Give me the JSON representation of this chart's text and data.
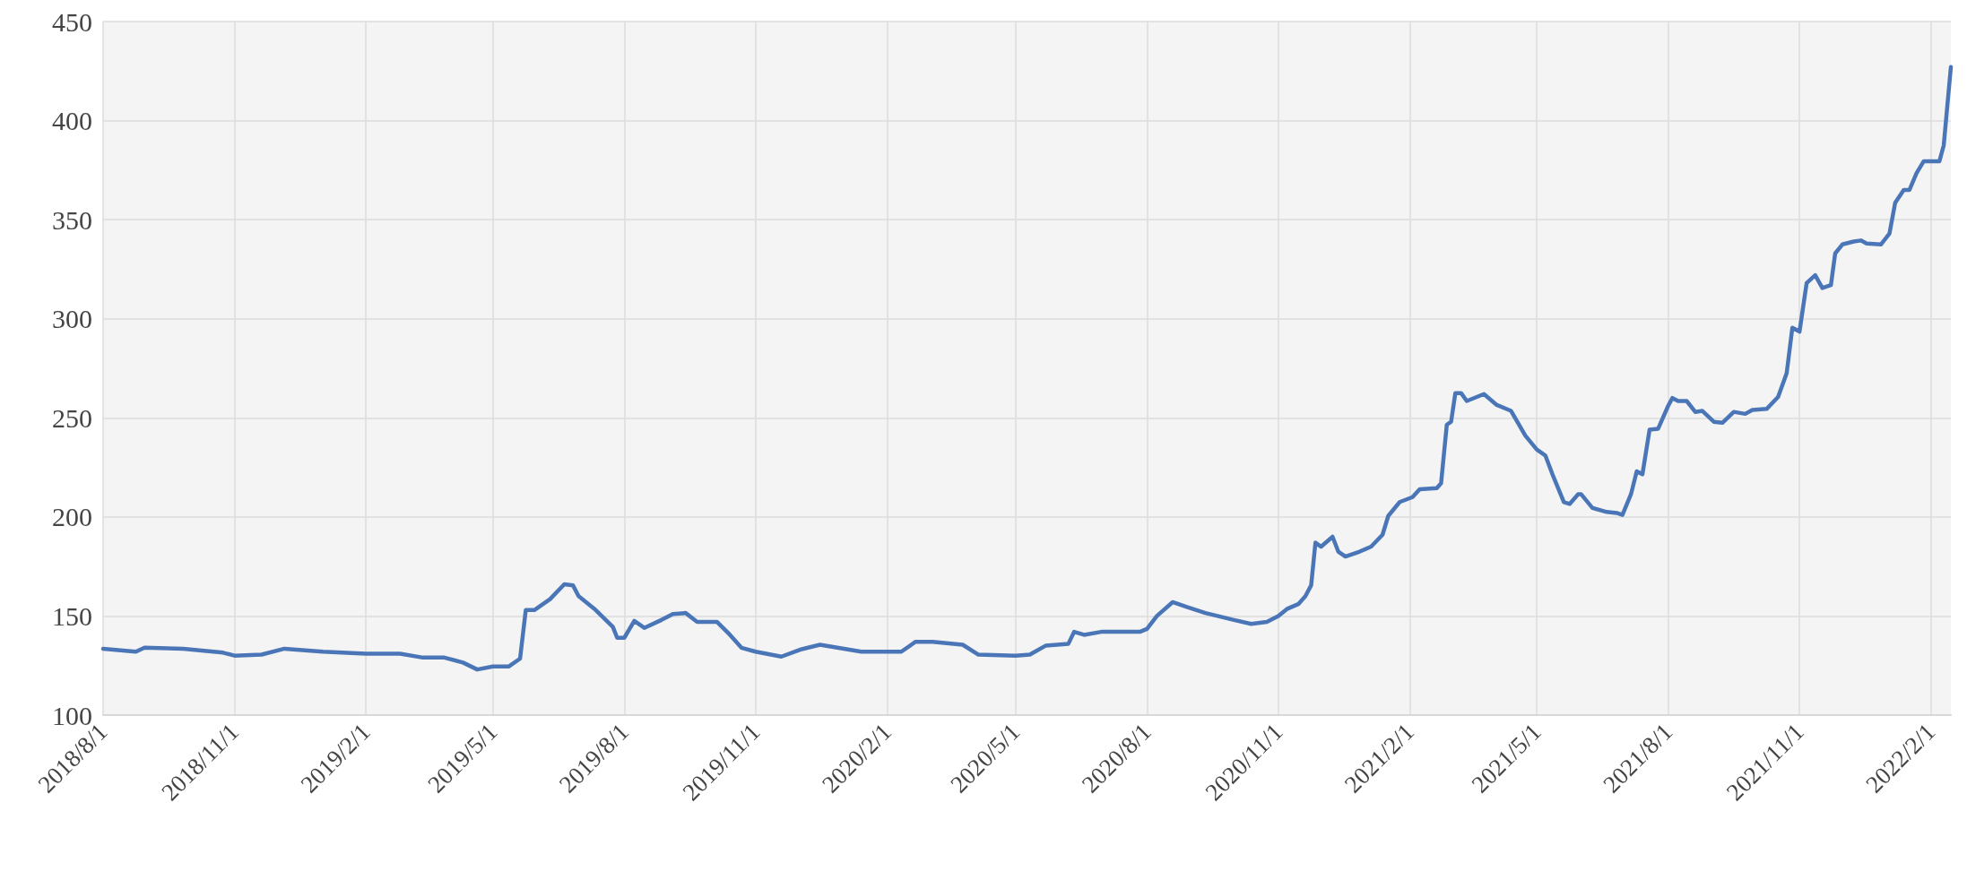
{
  "chart_data": {
    "type": "line",
    "color": "#4a76b8",
    "grid": true,
    "marker": "none",
    "line_style": "solid",
    "xlim": [
      "2018-08-01",
      "2022-02-15"
    ],
    "xticks": [
      {
        "value": "2018-08-01",
        "label": "2018/8/1"
      },
      {
        "value": "2018-11-01",
        "label": "2018/11/1"
      },
      {
        "value": "2019-02-01",
        "label": "2019/2/1"
      },
      {
        "value": "2019-05-01",
        "label": "2019/5/1"
      },
      {
        "value": "2019-08-01",
        "label": "2019/8/1"
      },
      {
        "value": "2019-11-01",
        "label": "2019/11/1"
      },
      {
        "value": "2020-02-01",
        "label": "2020/2/1"
      },
      {
        "value": "2020-05-01",
        "label": "2020/5/1"
      },
      {
        "value": "2020-08-01",
        "label": "2020/8/1"
      },
      {
        "value": "2020-11-01",
        "label": "2020/11/1"
      },
      {
        "value": "2021-02-01",
        "label": "2021/2/1"
      },
      {
        "value": "2021-05-01",
        "label": "2021/5/1"
      },
      {
        "value": "2021-08-01",
        "label": "2021/8/1"
      },
      {
        "value": "2021-11-01",
        "label": "2021/11/1"
      },
      {
        "value": "2022-02-01",
        "label": "2022/2/1"
      }
    ],
    "ylim": [
      100,
      450
    ],
    "yticks": [
      100,
      150,
      200,
      250,
      300,
      350,
      400,
      450
    ],
    "x": [
      "2018-08-01",
      "2018-08-24",
      "2018-08-30",
      "2018-09-26",
      "2018-10-24",
      "2018-11-01",
      "2018-11-20",
      "2018-12-06",
      "2019-01-02",
      "2019-02-01",
      "2019-02-25",
      "2019-03-13",
      "2019-03-28",
      "2019-04-10",
      "2019-04-20",
      "2019-05-01",
      "2019-05-12",
      "2019-05-20",
      "2019-05-24",
      "2019-05-30",
      "2019-06-10",
      "2019-06-20",
      "2019-06-26",
      "2019-06-30",
      "2019-07-12",
      "2019-07-24",
      "2019-07-27",
      "2019-08-01",
      "2019-08-08",
      "2019-08-15",
      "2019-08-27",
      "2019-09-04",
      "2019-09-13",
      "2019-09-21",
      "2019-10-05",
      "2019-10-14",
      "2019-10-22",
      "2019-11-01",
      "2019-11-19",
      "2019-12-02",
      "2019-12-16",
      "2020-01-14",
      "2020-02-01",
      "2020-02-11",
      "2020-02-21",
      "2020-03-04",
      "2020-03-25",
      "2020-04-05",
      "2020-05-01",
      "2020-05-11",
      "2020-05-22",
      "2020-06-07",
      "2020-06-11",
      "2020-06-18",
      "2020-06-30",
      "2020-07-27",
      "2020-08-01",
      "2020-08-08",
      "2020-08-19",
      "2020-08-29",
      "2020-09-11",
      "2020-10-01",
      "2020-10-13",
      "2020-10-24",
      "2020-11-01",
      "2020-11-07",
      "2020-11-15",
      "2020-11-20",
      "2020-11-24",
      "2020-11-27",
      "2020-12-01",
      "2020-12-09",
      "2020-12-13",
      "2020-12-18",
      "2020-12-28",
      "2021-01-05",
      "2021-01-13",
      "2021-01-17",
      "2021-01-25",
      "2021-02-03",
      "2021-02-08",
      "2021-02-20",
      "2021-02-23",
      "2021-02-27",
      "2021-03-02",
      "2021-03-05",
      "2021-03-09",
      "2021-03-13",
      "2021-03-25",
      "2021-04-03",
      "2021-04-13",
      "2021-04-23",
      "2021-05-01",
      "2021-05-07",
      "2021-05-12",
      "2021-05-20",
      "2021-05-24",
      "2021-05-30",
      "2021-06-01",
      "2021-06-09",
      "2021-06-19",
      "2021-06-26",
      "2021-06-30",
      "2021-07-06",
      "2021-07-10",
      "2021-07-14",
      "2021-07-19",
      "2021-07-25",
      "2021-08-01",
      "2021-08-04",
      "2021-08-08",
      "2021-08-14",
      "2021-08-20",
      "2021-08-25",
      "2021-09-02",
      "2021-09-08",
      "2021-09-16",
      "2021-09-24",
      "2021-09-29",
      "2021-10-09",
      "2021-10-17",
      "2021-10-23",
      "2021-10-27",
      "2021-11-01",
      "2021-11-06",
      "2021-11-12",
      "2021-11-17",
      "2021-11-23",
      "2021-11-26",
      "2021-12-01",
      "2021-12-09",
      "2021-12-14",
      "2021-12-18",
      "2021-12-28",
      "2022-01-03",
      "2022-01-07",
      "2022-01-13",
      "2022-01-17",
      "2022-01-22",
      "2022-01-27",
      "2022-02-07",
      "2022-02-10",
      "2022-02-15"
    ],
    "values": [
      133.5,
      132,
      134,
      133.5,
      131.5,
      130,
      130.5,
      133.5,
      132,
      131,
      131,
      129,
      129,
      126.5,
      123,
      124.5,
      124.5,
      128.5,
      153,
      153,
      158.5,
      166,
      165.5,
      160,
      153,
      144.5,
      139,
      139,
      147.5,
      144,
      148,
      151,
      151.5,
      147,
      147,
      140.5,
      134,
      132,
      129.5,
      133,
      135.5,
      132,
      132,
      132,
      137,
      137,
      135.5,
      130.5,
      130,
      130.5,
      135,
      136,
      142,
      140.5,
      142,
      142,
      143.5,
      150,
      157,
      154.5,
      151.5,
      148,
      146,
      147,
      150,
      153.5,
      156,
      160,
      165.5,
      187,
      185,
      190,
      182.5,
      180,
      182.5,
      185,
      191,
      200.5,
      207.5,
      210,
      214,
      214.5,
      217,
      246.5,
      248,
      262.5,
      262.5,
      258.5,
      262,
      256.5,
      253.5,
      241,
      234,
      231,
      221.5,
      207.5,
      206.5,
      211.5,
      211.5,
      204.5,
      202.5,
      202,
      201,
      211.5,
      223,
      221.5,
      244,
      244.5,
      256,
      260,
      258.5,
      258.5,
      253,
      253.5,
      248,
      247.5,
      253,
      252,
      254,
      254.5,
      260.5,
      272.5,
      295.5,
      293.5,
      318,
      322,
      315.5,
      317,
      333,
      337.5,
      339,
      339.5,
      338,
      337.5,
      343,
      358.5,
      365,
      365,
      373.5,
      379.5,
      379.5,
      387.5,
      427
    ]
  }
}
